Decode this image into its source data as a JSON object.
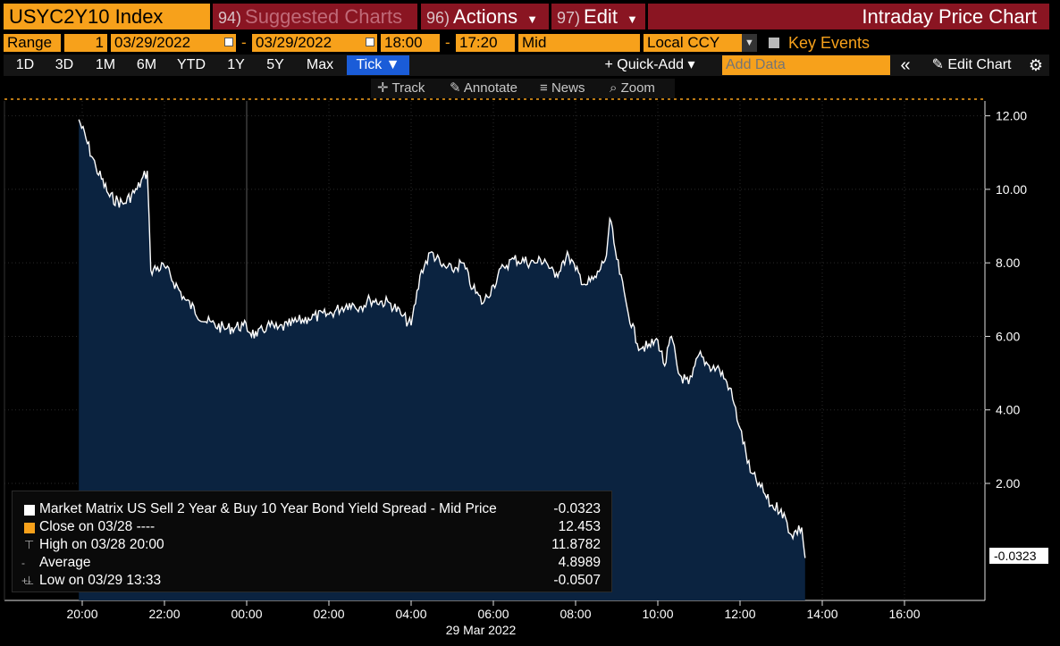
{
  "header": {
    "ticker": "USYC2Y10 Index",
    "suggested_num": "94)",
    "suggested_label": "Suggested Charts",
    "actions_num": "96)",
    "actions_label": "Actions",
    "edit_num": "97)",
    "edit_label": "Edit",
    "title": "Intraday Price Chart"
  },
  "range_bar": {
    "range_label": "Range",
    "range_value": "1",
    "start_date": "03/29/2022",
    "end_date": "03/29/2022",
    "start_time": "18:00",
    "end_time": "17:20",
    "price_type": "Mid",
    "currency": "Local CCY",
    "key_events_label": "Key Events",
    "dash": "-"
  },
  "period_bar": {
    "periods": [
      "1D",
      "3D",
      "1M",
      "6M",
      "YTD",
      "1Y",
      "5Y",
      "Max"
    ],
    "selected": "Tick ▼",
    "quick_add": "+ Quick-Add ▾",
    "add_data_placeholder": "Add Data",
    "collapse": "«",
    "edit_chart": "Edit Chart"
  },
  "chart_toolbar": {
    "track": "Track",
    "annotate": "Annotate",
    "news": "News",
    "zoom": "Zoom"
  },
  "legend": {
    "rows": [
      {
        "label": "Market Matrix US Sell 2 Year & Buy 10 Year Bond Yield Spread - Mid Price",
        "value": "-0.0323",
        "color": "#ffffff"
      },
      {
        "label": "Close on 03/28 ----",
        "value": "12.453",
        "color": "#f7a11b"
      },
      {
        "label": "High on 03/28 20:00",
        "value": "11.8782",
        "color": ""
      },
      {
        "label": "Average",
        "value": "4.8989",
        "color": ""
      },
      {
        "label": "Low on 03/29 13:33",
        "value": "-0.0507",
        "color": ""
      }
    ]
  },
  "colors": {
    "accent": "#f7a11b",
    "header_red": "#8a1522",
    "area_fill": "#0b2340",
    "tick_blue": "#1a5cd8"
  },
  "chart_data": {
    "type": "area",
    "x_date_label": "29 Mar 2022",
    "x_tick_labels": [
      "20:00",
      "22:00",
      "00:00",
      "02:00",
      "04:00",
      "06:00",
      "08:00",
      "10:00",
      "12:00",
      "14:00",
      "16:00"
    ],
    "y_tick_labels": [
      "12.00",
      "10.00",
      "8.00",
      "6.00",
      "4.00",
      "2.00"
    ],
    "ylim": [
      -0.6,
      13.1
    ],
    "last_value_label": "-0.0323",
    "close_prev_line": 12.453,
    "series": [
      {
        "x": [
          "19:55",
          "20:20",
          "20:40",
          "21:00",
          "21:20",
          "21:35",
          "21:40",
          "22:00",
          "22:30",
          "23:00",
          "23:30",
          "23:55",
          "00:15",
          "00:30",
          "00:45",
          "01:00",
          "01:30",
          "02:00",
          "02:30",
          "02:45",
          "03:00",
          "03:30",
          "03:45",
          "04:00",
          "04:15",
          "04:30",
          "04:45",
          "05:00",
          "05:15",
          "05:30",
          "05:45",
          "06:00",
          "06:15",
          "06:30",
          "07:00",
          "07:15",
          "07:30",
          "07:40",
          "07:50",
          "08:00",
          "08:15",
          "08:30",
          "08:45",
          "08:50",
          "09:00",
          "09:15",
          "09:30",
          "09:45",
          "10:00",
          "10:10",
          "10:20",
          "10:30",
          "10:45",
          "10:50",
          "11:00",
          "11:15",
          "11:30",
          "11:45",
          "12:00",
          "12:15",
          "12:30",
          "12:45",
          "13:00",
          "13:15",
          "13:30",
          "13:35"
        ],
        "y": [
          11.9,
          10.6,
          9.8,
          9.6,
          10.0,
          10.5,
          7.8,
          7.9,
          7.0,
          6.4,
          6.2,
          6.3,
          6.0,
          6.3,
          6.2,
          6.3,
          6.5,
          6.6,
          6.9,
          6.8,
          7.0,
          6.9,
          6.6,
          6.3,
          7.8,
          8.3,
          7.9,
          7.8,
          8.0,
          7.3,
          6.9,
          7.4,
          7.9,
          8.1,
          8.0,
          8.1,
          7.6,
          8.0,
          8.2,
          7.8,
          7.4,
          7.6,
          8.2,
          9.2,
          8.1,
          6.8,
          5.8,
          5.7,
          5.9,
          5.2,
          6.0,
          5.0,
          4.7,
          4.9,
          5.5,
          5.2,
          5.1,
          4.6,
          3.5,
          2.3,
          1.9,
          1.4,
          1.3,
          0.6,
          0.8,
          -0.03
        ]
      }
    ]
  }
}
